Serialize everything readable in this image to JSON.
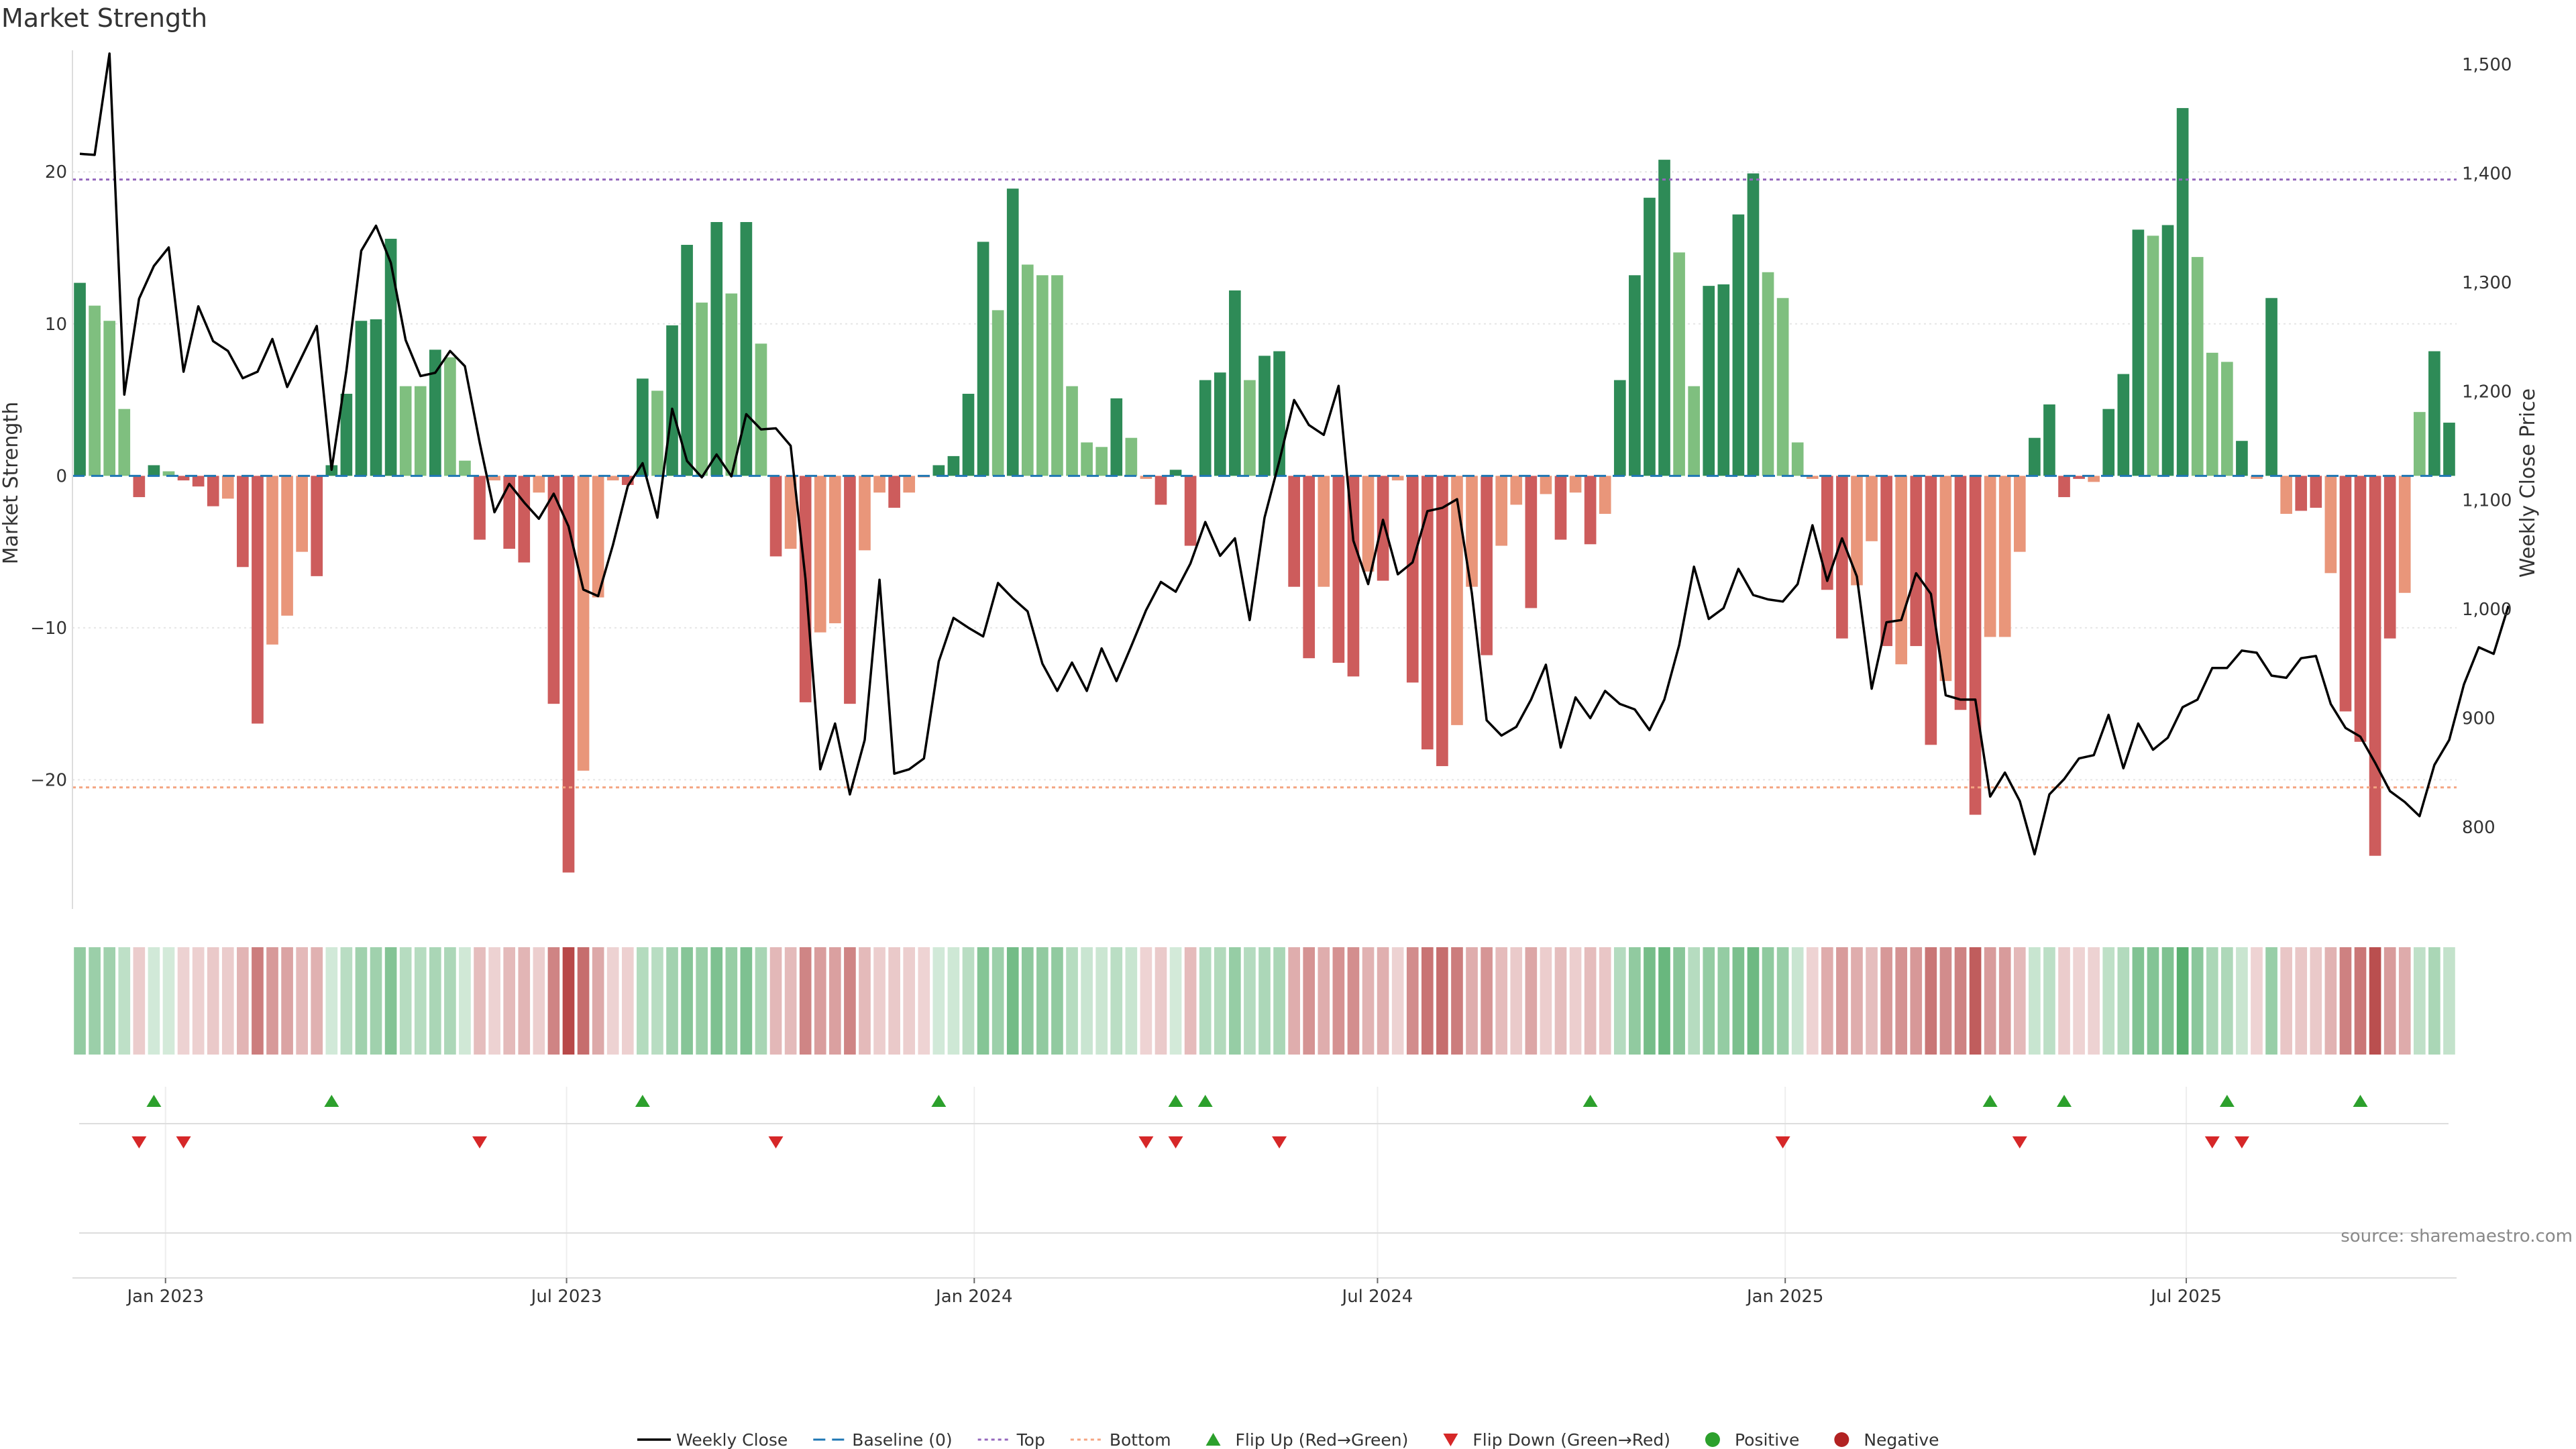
{
  "chart_data": {
    "type": "bar",
    "title": "Market Strength",
    "ylabel": "Market Strength",
    "y2label": "Weekly Close Price",
    "source": "source: sharemaestro.com",
    "ylim": [
      -28.5,
      28
    ],
    "y2lim": [
      724.8,
      1513
    ],
    "yticks": [
      20,
      10,
      0,
      -10,
      -20
    ],
    "yticks_labels": [
      "20",
      "10",
      "0",
      "−10",
      "−20"
    ],
    "y2ticks": [
      1500,
      1400,
      1300,
      1200,
      1100,
      1000,
      900,
      800
    ],
    "y2ticks_labels": [
      "1,500",
      "1,400",
      "1,300",
      "1,200",
      "1,100",
      "1,000",
      "900",
      "800"
    ],
    "top_line": 19.5,
    "bottom_line": -20.5,
    "x_start": "2022-11-20",
    "x_end": "2025-10-31",
    "xticks": [
      {
        "date": "2023-01-01",
        "label": "Jan 2023"
      },
      {
        "date": "2023-07-01",
        "label": "Jul 2023"
      },
      {
        "date": "2024-01-01",
        "label": "Jan 2024"
      },
      {
        "date": "2024-07-01",
        "label": "Jul 2024"
      },
      {
        "date": "2025-01-01",
        "label": "Jan 2025"
      },
      {
        "date": "2025-07-01",
        "label": "Jul 2025"
      }
    ],
    "colors": {
      "pos_strong": "#2e8b57",
      "pos_weak": "#7fbf7f",
      "neg_strong": "#cd5c5c",
      "neg_weak": "#e9967a",
      "line": "#000000",
      "top": "#9467bd",
      "bottom": "#f4a582",
      "baseline": "#1f77b4",
      "flip_up": "#2ca02c",
      "flip_down": "#d62728"
    },
    "strength": [
      12.7,
      11.2,
      10.2,
      4.4,
      -1.4,
      0.7,
      0.3,
      -0.3,
      -0.7,
      -2.0,
      -1.5,
      -6.0,
      -16.3,
      -11.1,
      -9.2,
      -5.0,
      -6.6,
      0.7,
      5.4,
      10.2,
      10.3,
      15.6,
      5.9,
      5.9,
      8.3,
      7.8,
      1.0,
      -4.2,
      -0.3,
      -4.8,
      -5.7,
      -1.1,
      -15.0,
      -26.1,
      -19.4,
      -8.0,
      -0.3,
      -0.6,
      6.4,
      5.6,
      9.9,
      15.2,
      11.4,
      16.7,
      12.0,
      16.7,
      8.7,
      -5.3,
      -4.8,
      -14.9,
      -10.3,
      -9.7,
      -15.0,
      -4.9,
      -1.1,
      -2.1,
      -1.1,
      -0.1,
      0.7,
      1.3,
      5.4,
      15.4,
      10.9,
      18.9,
      13.9,
      13.2,
      13.2,
      5.9,
      2.2,
      1.9,
      5.1,
      2.5,
      -0.2,
      -1.9,
      0.4,
      -4.6,
      6.3,
      6.8,
      12.2,
      6.3,
      7.9,
      8.2,
      -7.3,
      -12.0,
      -7.3,
      -12.3,
      -13.2,
      -6.3,
      -6.9,
      -0.3,
      -13.6,
      -18.0,
      -19.1,
      -16.4,
      -7.3,
      -11.8,
      -4.6,
      -1.9,
      -8.7,
      -1.2,
      -4.2,
      -1.1,
      -4.5,
      -2.5,
      6.3,
      13.2,
      18.3,
      20.8,
      14.7,
      5.9,
      12.5,
      12.6,
      17.2,
      19.9,
      13.4,
      11.7,
      2.2,
      -0.2,
      -7.5,
      -10.7,
      -7.2,
      -4.3,
      -11.2,
      -12.4,
      -11.2,
      -17.7,
      -13.5,
      -15.4,
      -22.3,
      -10.6,
      -10.6,
      -5.0,
      2.5,
      4.7,
      -1.4,
      -0.2,
      -0.4,
      4.4,
      6.7,
      16.2,
      15.8,
      16.5,
      24.2,
      14.4,
      8.1,
      7.5,
      2.3,
      -0.2,
      11.7,
      -2.5,
      -2.3,
      -2.1,
      -6.4,
      -15.5,
      -17.5,
      -25.0,
      -10.7,
      -7.7,
      4.2,
      8.2,
      3.5
    ],
    "strong": [
      1,
      0,
      0,
      0,
      1,
      1,
      0,
      1,
      1,
      1,
      0,
      1,
      1,
      0,
      0,
      0,
      1,
      1,
      1,
      1,
      1,
      1,
      0,
      0,
      1,
      0,
      0,
      1,
      0,
      1,
      1,
      0,
      1,
      1,
      0,
      0,
      0,
      1,
      1,
      0,
      1,
      1,
      0,
      1,
      0,
      1,
      0,
      1,
      0,
      1,
      0,
      0,
      1,
      0,
      0,
      1,
      0,
      0,
      1,
      1,
      1,
      1,
      0,
      1,
      0,
      0,
      0,
      0,
      0,
      0,
      1,
      0,
      0,
      1,
      1,
      1,
      1,
      1,
      1,
      0,
      1,
      1,
      1,
      1,
      0,
      1,
      1,
      0,
      1,
      0,
      1,
      1,
      1,
      0,
      0,
      1,
      0,
      0,
      1,
      0,
      1,
      0,
      1,
      0,
      1,
      1,
      1,
      1,
      0,
      0,
      1,
      1,
      1,
      1,
      0,
      0,
      0,
      0,
      1,
      1,
      0,
      0,
      1,
      0,
      1,
      1,
      0,
      1,
      1,
      0,
      0,
      0,
      1,
      1,
      1,
      1,
      0,
      1,
      1,
      1,
      0,
      1,
      1,
      0,
      0,
      0,
      1,
      0,
      1,
      0,
      1,
      1,
      0,
      1,
      1,
      1,
      1,
      0,
      0,
      1,
      1,
      0
    ],
    "close": [
      1418,
      1417,
      1510,
      1197,
      1285,
      1315,
      1332,
      1218,
      1278,
      1246,
      1237,
      1212,
      1218,
      1248,
      1204,
      1232,
      1260,
      1128,
      1219,
      1329,
      1352,
      1318,
      1247,
      1214,
      1217,
      1237,
      1223,
      1153,
      1089,
      1115,
      1098,
      1083,
      1106,
      1076,
      1018,
      1012,
      1059,
      1113,
      1134,
      1084,
      1184,
      1136,
      1121,
      1142,
      1122,
      1179,
      1165,
      1166,
      1150,
      1028,
      853,
      895,
      830,
      880,
      1027,
      849,
      853,
      863,
      952,
      992,
      983,
      975,
      1024,
      1010,
      998,
      950,
      925,
      951,
      925,
      964,
      934,
      966,
      999,
      1025,
      1016,
      1042,
      1080,
      1049,
      1065,
      990,
      1084,
      1136,
      1192,
      1169,
      1160,
      1205,
      1063,
      1023,
      1082,
      1032,
      1043,
      1090,
      1093,
      1101,
      1015,
      898,
      884,
      892,
      917,
      949,
      873,
      919,
      900,
      925,
      913,
      908,
      889,
      917,
      967,
      1039,
      991,
      1001,
      1037,
      1013,
      1009,
      1007,
      1023,
      1077,
      1026,
      1065,
      1030,
      927,
      988,
      990,
      1033,
      1014,
      921,
      917,
      917,
      828,
      850,
      824,
      775,
      830,
      844,
      863,
      866,
      903,
      854,
      895,
      871,
      882,
      910,
      917,
      946,
      946,
      962,
      960,
      939,
      937,
      955,
      957,
      913,
      891,
      883,
      859,
      833,
      823,
      810,
      857,
      880,
      931,
      965,
      959,
      1003
    ]
  },
  "flips": {
    "up": [
      5,
      17,
      38,
      58,
      74,
      76,
      102,
      129,
      134,
      145,
      154
    ],
    "down": [
      4,
      7,
      27,
      47,
      72,
      74,
      81,
      115,
      131,
      144,
      146
    ]
  },
  "legend": [
    {
      "type": "line",
      "label": "Weekly Close"
    },
    {
      "type": "baseline",
      "label": "Baseline (0)"
    },
    {
      "type": "top",
      "label": "Top"
    },
    {
      "type": "bottom",
      "label": "Bottom"
    },
    {
      "type": "flip_up",
      "label": "Flip Up (Red→Green)"
    },
    {
      "type": "flip_down",
      "label": "Flip Down (Green→Red)"
    },
    {
      "type": "positive",
      "label": "Positive"
    },
    {
      "type": "negative",
      "label": "Negative"
    }
  ]
}
